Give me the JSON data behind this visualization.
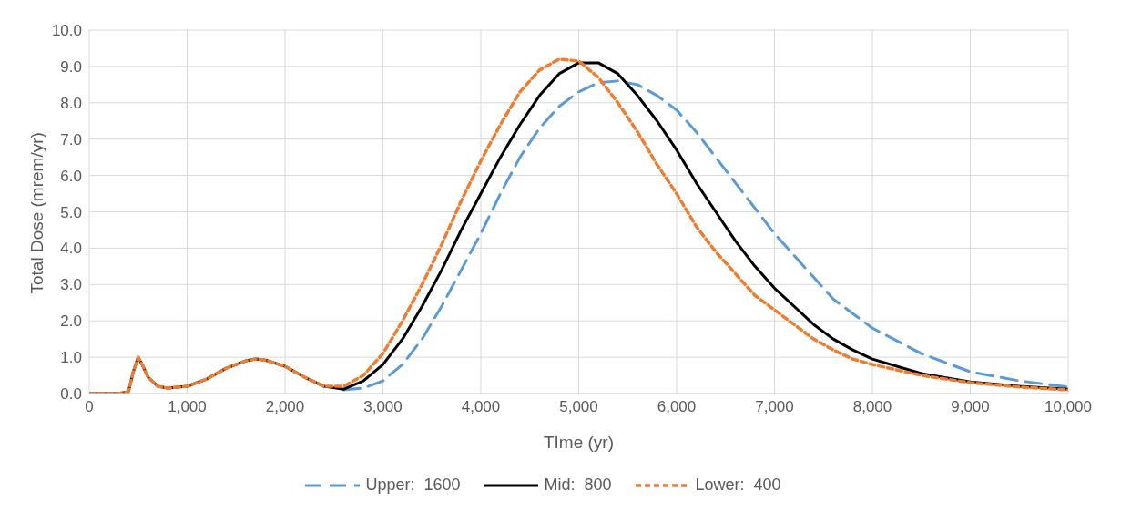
{
  "chart_data": {
    "type": "line",
    "xlabel": "TIme (yr)",
    "ylabel": "Total Dose (mrem/yr)",
    "x": [
      0,
      300,
      400,
      450,
      500,
      550,
      600,
      700,
      800,
      1000,
      1200,
      1400,
      1600,
      1700,
      1800,
      2000,
      2200,
      2400,
      2600,
      2800,
      3000,
      3200,
      3400,
      3600,
      3800,
      4000,
      4200,
      4400,
      4600,
      4800,
      5000,
      5200,
      5400,
      5600,
      5800,
      6000,
      6200,
      6400,
      6600,
      6800,
      7000,
      7200,
      7400,
      7600,
      7800,
      8000,
      8500,
      9000,
      9500,
      10000
    ],
    "series": [
      {
        "name": "Upper:  1600",
        "color": "#5b9bd5",
        "line_style": "dashed",
        "values": [
          null,
          null,
          null,
          null,
          null,
          null,
          null,
          null,
          null,
          null,
          null,
          null,
          null,
          null,
          null,
          null,
          null,
          null,
          0.1,
          0.15,
          0.35,
          0.8,
          1.5,
          2.4,
          3.4,
          4.4,
          5.5,
          6.5,
          7.3,
          7.9,
          8.3,
          8.55,
          8.6,
          8.5,
          8.2,
          7.8,
          7.2,
          6.5,
          5.8,
          5.1,
          4.4,
          3.8,
          3.2,
          2.6,
          2.2,
          1.8,
          1.1,
          0.6,
          0.35,
          0.18
        ]
      },
      {
        "name": "Mid:  800",
        "color": "#000000",
        "line_style": "solid",
        "values": [
          0,
          0,
          0.05,
          0.6,
          1.0,
          0.75,
          0.45,
          0.2,
          0.15,
          0.2,
          0.4,
          0.7,
          0.9,
          0.95,
          0.92,
          0.75,
          0.45,
          0.2,
          0.12,
          0.35,
          0.8,
          1.5,
          2.4,
          3.4,
          4.5,
          5.5,
          6.5,
          7.4,
          8.2,
          8.8,
          9.1,
          9.1,
          8.8,
          8.2,
          7.5,
          6.7,
          5.8,
          5.0,
          4.2,
          3.5,
          2.9,
          2.4,
          1.9,
          1.5,
          1.2,
          0.95,
          0.55,
          0.32,
          0.2,
          0.12
        ]
      },
      {
        "name": "Lower:  400",
        "color": "#ed7d31",
        "line_style": "dotted",
        "values": [
          0,
          0,
          0.05,
          0.6,
          1.0,
          0.75,
          0.45,
          0.2,
          0.15,
          0.2,
          0.4,
          0.7,
          0.9,
          0.95,
          0.92,
          0.75,
          0.45,
          0.2,
          0.2,
          0.5,
          1.1,
          2.0,
          3.0,
          4.1,
          5.3,
          6.4,
          7.4,
          8.3,
          8.9,
          9.2,
          9.15,
          8.7,
          8.0,
          7.2,
          6.3,
          5.5,
          4.6,
          3.9,
          3.3,
          2.7,
          2.3,
          1.9,
          1.5,
          1.2,
          0.95,
          0.8,
          0.5,
          0.3,
          0.18,
          0.1
        ]
      }
    ],
    "xlim": [
      0,
      10000
    ],
    "xticks": [
      0,
      {
        "value": 1000,
        "label": "1,000"
      },
      {
        "value": 2000,
        "label": "2,000"
      },
      {
        "value": 3000,
        "label": "3,000"
      },
      {
        "value": 4000,
        "label": "4,000"
      },
      {
        "value": 5000,
        "label": "5,000"
      },
      {
        "value": 6000,
        "label": "6,000"
      },
      {
        "value": 7000,
        "label": "7,000"
      },
      {
        "value": 8000,
        "label": "8,000"
      },
      {
        "value": 9000,
        "label": "9,000"
      },
      {
        "value": 10000,
        "label": "10,000"
      }
    ],
    "ylim": [
      0,
      10
    ],
    "yticks": [
      {
        "value": 0,
        "label": "0.0"
      },
      {
        "value": 1,
        "label": "1.0"
      },
      {
        "value": 2,
        "label": "2.0"
      },
      {
        "value": 3,
        "label": "3.0"
      },
      {
        "value": 4,
        "label": "4.0"
      },
      {
        "value": 5,
        "label": "5.0"
      },
      {
        "value": 6,
        "label": "6.0"
      },
      {
        "value": 7,
        "label": "7.0"
      },
      {
        "value": 8,
        "label": "8.0"
      },
      {
        "value": 9,
        "label": "9.0"
      },
      {
        "value": 10,
        "label": "10.0"
      }
    ],
    "grid": true,
    "legend": "bottom",
    "marker": "none"
  }
}
